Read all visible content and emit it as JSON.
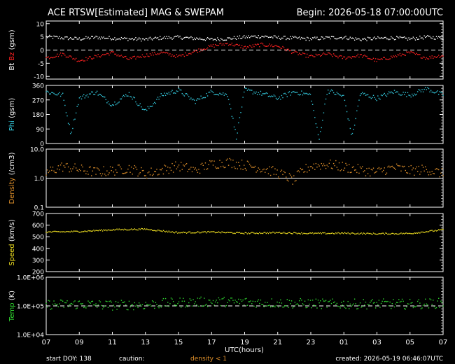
{
  "header": {
    "title": "ACE RTSW[Estimated] MAG & SWEPAM",
    "begin": "Begin: 2026-05-18 07:00:00UTC"
  },
  "footer": {
    "start_doy": "start DOY: 138",
    "caution_label": "caution:",
    "caution_density": "density < 1",
    "created": "created: 2026-05-19 06:46:07UTC"
  },
  "colors": {
    "bt": "#ffffff",
    "bz": "#ff2020",
    "phi": "#33c8dc",
    "density": "#e0902a",
    "speed": "#f0e020",
    "temp": "#30d830",
    "axis": "#ffffff",
    "background": "#000000"
  },
  "chart_data": {
    "type": "scatter",
    "xlabel": "UTC(hours)",
    "x_ticks": [
      "07",
      "09",
      "11",
      "13",
      "15",
      "17",
      "19",
      "21",
      "23",
      "01",
      "03",
      "05",
      "07"
    ],
    "x_range_hours": [
      0,
      24
    ],
    "panels": [
      {
        "id": "mag",
        "ylabel_parts": [
          {
            "text": "Bt",
            "color": "#ffffff"
          },
          {
            "text": "Bz",
            "color": "#ff2020"
          },
          {
            "text": "(gsm)",
            "color": "#ffffff"
          }
        ],
        "ylim": [
          -11,
          11
        ],
        "ticks": [
          "10",
          "5",
          "0",
          "-5",
          "-10"
        ],
        "tick_values": [
          10,
          5,
          0,
          -5,
          -10
        ],
        "zero_line": true,
        "series": [
          {
            "key": "bt",
            "color": "#ffffff",
            "keypoints": [
              [
                0,
                5.0
              ],
              [
                1,
                4.6
              ],
              [
                2,
                4.2
              ],
              [
                3,
                4.8
              ],
              [
                4,
                4.5
              ],
              [
                5,
                4.2
              ],
              [
                6,
                4.0
              ],
              [
                7,
                4.6
              ],
              [
                8,
                4.8
              ],
              [
                9,
                4.4
              ],
              [
                10,
                4.0
              ],
              [
                11,
                4.3
              ],
              [
                12,
                4.9
              ],
              [
                13,
                5.2
              ],
              [
                14,
                4.7
              ],
              [
                15,
                4.5
              ],
              [
                16,
                4.2
              ],
              [
                17,
                4.6
              ],
              [
                18,
                4.8
              ],
              [
                19,
                4.0
              ],
              [
                20,
                4.4
              ],
              [
                21,
                4.6
              ],
              [
                22,
                4.2
              ],
              [
                23,
                4.9
              ],
              [
                24,
                4.5
              ]
            ]
          },
          {
            "key": "bz",
            "color": "#ff2020",
            "keypoints": [
              [
                0,
                -3.0
              ],
              [
                1,
                -1.5
              ],
              [
                2,
                -4.0
              ],
              [
                3,
                -2.5
              ],
              [
                4,
                -1.0
              ],
              [
                5,
                -3.5
              ],
              [
                6,
                -2.0
              ],
              [
                7,
                -1.0
              ],
              [
                8,
                -2.5
              ],
              [
                9,
                -0.5
              ],
              [
                10,
                1.5
              ],
              [
                11,
                2.5
              ],
              [
                12,
                1.0
              ],
              [
                13,
                2.0
              ],
              [
                14,
                1.5
              ],
              [
                15,
                -1.0
              ],
              [
                16,
                -2.5
              ],
              [
                17,
                -1.5
              ],
              [
                18,
                -3.0
              ],
              [
                19,
                -2.0
              ],
              [
                20,
                -4.0
              ],
              [
                21,
                -2.5
              ],
              [
                22,
                -1.0
              ],
              [
                23,
                -3.0
              ],
              [
                24,
                -2.0
              ]
            ]
          }
        ]
      },
      {
        "id": "phi",
        "ylabel_parts": [
          {
            "text": "Phi",
            "color": "#33c8dc"
          },
          {
            "text": "(gsm)",
            "color": "#ffffff"
          }
        ],
        "ylim": [
          0,
          360
        ],
        "ticks": [
          "360",
          "270",
          "180",
          "90",
          "0"
        ],
        "tick_values": [
          360,
          270,
          180,
          90,
          0
        ],
        "zero_line": false,
        "series": [
          {
            "key": "phi",
            "color": "#33c8dc",
            "keypoints": [
              [
                0,
                320
              ],
              [
                1,
                300
              ],
              [
                1.5,
                60
              ],
              [
                2,
                280
              ],
              [
                3,
                320
              ],
              [
                4,
                240
              ],
              [
                5,
                310
              ],
              [
                6,
                200
              ],
              [
                7,
                300
              ],
              [
                8,
                330
              ],
              [
                9,
                260
              ],
              [
                10,
                320
              ],
              [
                11,
                300
              ],
              [
                11.5,
                40
              ],
              [
                12,
                330
              ],
              [
                13,
                310
              ],
              [
                14,
                280
              ],
              [
                15,
                320
              ],
              [
                16,
                300
              ],
              [
                16.5,
                20
              ],
              [
                17,
                330
              ],
              [
                18,
                290
              ],
              [
                18.5,
                40
              ],
              [
                19,
                310
              ],
              [
                20,
                280
              ],
              [
                21,
                320
              ],
              [
                22,
                300
              ],
              [
                23,
                340
              ],
              [
                24,
                300
              ]
            ]
          }
        ]
      },
      {
        "id": "density",
        "ylabel_parts": [
          {
            "text": "Density",
            "color": "#e0902a"
          },
          {
            "text": "(/cm3)",
            "color": "#ffffff"
          }
        ],
        "log": true,
        "ylim": [
          0.1,
          10.0
        ],
        "ticks": [
          "10.0",
          "1.0",
          "0.1"
        ],
        "tick_values": [
          10.0,
          1.0,
          0.1
        ],
        "zero_line": false,
        "ref_line": 1.0,
        "series": [
          {
            "key": "density",
            "color": "#e0902a",
            "keypoints": [
              [
                0,
                1.5
              ],
              [
                1,
                2.5
              ],
              [
                2,
                2.0
              ],
              [
                3,
                1.6
              ],
              [
                4,
                1.8
              ],
              [
                5,
                2.2
              ],
              [
                6,
                1.4
              ],
              [
                7,
                1.9
              ],
              [
                8,
                2.6
              ],
              [
                9,
                1.8
              ],
              [
                10,
                3.0
              ],
              [
                11,
                3.5
              ],
              [
                12,
                2.8
              ],
              [
                13,
                2.2
              ],
              [
                14,
                1.5
              ],
              [
                15,
                0.8
              ],
              [
                16,
                2.6
              ],
              [
                17,
                3.0
              ],
              [
                18,
                2.4
              ],
              [
                19,
                1.9
              ],
              [
                20,
                1.6
              ],
              [
                21,
                2.3
              ],
              [
                22,
                1.8
              ],
              [
                23,
                2.0
              ],
              [
                24,
                1.4
              ]
            ]
          }
        ]
      },
      {
        "id": "speed",
        "ylabel_parts": [
          {
            "text": "Speed",
            "color": "#f0e020"
          },
          {
            "text": "(km/s)",
            "color": "#ffffff"
          }
        ],
        "ylim": [
          200,
          700
        ],
        "ticks": [
          "700",
          "600",
          "500",
          "400",
          "300",
          "200"
        ],
        "tick_values": [
          700,
          600,
          500,
          400,
          300,
          200
        ],
        "zero_line": false,
        "series": [
          {
            "key": "speed",
            "color": "#f0e020",
            "keypoints": [
              [
                0,
                540
              ],
              [
                2,
                545
              ],
              [
                4,
                560
              ],
              [
                6,
                565
              ],
              [
                7,
                550
              ],
              [
                8,
                535
              ],
              [
                10,
                540
              ],
              [
                12,
                530
              ],
              [
                14,
                535
              ],
              [
                16,
                528
              ],
              [
                18,
                530
              ],
              [
                20,
                525
              ],
              [
                22,
                528
              ],
              [
                24,
                560
              ]
            ]
          }
        ]
      },
      {
        "id": "temp",
        "ylabel_parts": [
          {
            "text": "Temp",
            "color": "#30d830"
          },
          {
            "text": "(K)",
            "color": "#ffffff"
          }
        ],
        "log": true,
        "ylim": [
          10000,
          1000000
        ],
        "ticks": [
          "1.0E+06",
          "1.0E+05",
          "1.0E+04"
        ],
        "tick_values": [
          1000000,
          100000,
          10000
        ],
        "zero_line": false,
        "ref_line": 100000,
        "series": [
          {
            "key": "temp",
            "color": "#30d830",
            "keypoints": [
              [
                0,
                110000
              ],
              [
                2,
                115000
              ],
              [
                4,
                105000
              ],
              [
                6,
                110000
              ],
              [
                8,
                130000
              ],
              [
                10,
                140000
              ],
              [
                12,
                135000
              ],
              [
                14,
                125000
              ],
              [
                16,
                120000
              ],
              [
                18,
                115000
              ],
              [
                20,
                118000
              ],
              [
                22,
                115000
              ],
              [
                24,
                125000
              ]
            ]
          }
        ]
      }
    ]
  }
}
